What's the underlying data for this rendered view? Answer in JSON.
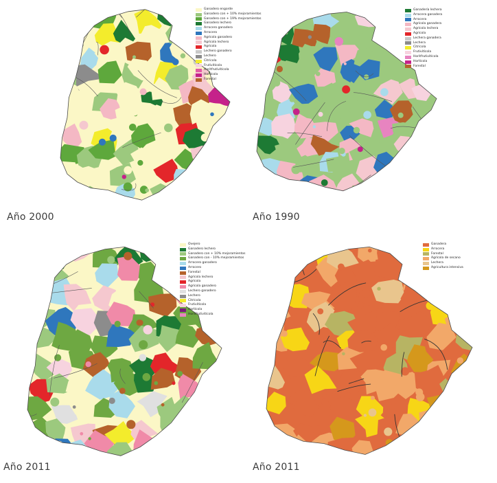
{
  "panels": [
    {
      "caption": "Año 2000",
      "legend": [
        {
          "label": "Ganadero engorde",
          "color": "#fbf7c6"
        },
        {
          "label": "Ganadero con + 10% mejoramientos",
          "color": "#9cc97e"
        },
        {
          "label": "Ganadero con + 19% mejoramientos",
          "color": "#5ea83c"
        },
        {
          "label": "Ganadero lechero",
          "color": "#1d7a34"
        },
        {
          "label": "Arrocero ganadero",
          "color": "#a9dbeb"
        },
        {
          "label": "Arrocero",
          "color": "#2f77bd"
        },
        {
          "label": "Agrícola ganadero",
          "color": "#f4b8c4"
        },
        {
          "label": "Agrícola lechero",
          "color": "#f5c8cf"
        },
        {
          "label": "Agrícola",
          "color": "#e3262a"
        },
        {
          "label": "Lechero ganadero",
          "color": "#c9c9c9"
        },
        {
          "label": "Lechero",
          "color": "#8c8c8c"
        },
        {
          "label": "Citrícola",
          "color": "#f3ec2c"
        },
        {
          "label": "Frutivitícola",
          "color": "#f7d3df"
        },
        {
          "label": "Horitfrutivitícola",
          "color": "#e35aa4"
        },
        {
          "label": "Hortícola",
          "color": "#c5228a"
        },
        {
          "label": "Forestal",
          "color": "#b5622b"
        }
      ]
    },
    {
      "caption": "Año 1990",
      "legend": [
        {
          "label": "Ganadería lechera",
          "color": "#1d7a34"
        },
        {
          "label": "Arrocera ganadera",
          "color": "#a9dbeb"
        },
        {
          "label": "Arrocera",
          "color": "#2f77bd"
        },
        {
          "label": "Agrícola ganadera",
          "color": "#f4b8c4"
        },
        {
          "label": "Agrícola lechera",
          "color": "#f5c8cf"
        },
        {
          "label": "Agrícola",
          "color": "#e3262a"
        },
        {
          "label": "Lechera ganadera",
          "color": "#c9c9c9"
        },
        {
          "label": "Lechera",
          "color": "#8c8c8c"
        },
        {
          "label": "Citrícola",
          "color": "#f3ec2c"
        },
        {
          "label": "Frutivitícola",
          "color": "#f7d3df"
        },
        {
          "label": "Horitfrutivitícola",
          "color": "#e784c0"
        },
        {
          "label": "Hortícola",
          "color": "#c5228a"
        },
        {
          "label": "Forestal",
          "color": "#b5622b"
        }
      ]
    },
    {
      "caption": "Año 2011",
      "legend": [
        {
          "label": "Ovejero",
          "color": "#fbf7c6"
        },
        {
          "label": "Ganadero lechero",
          "color": "#1d7a34"
        },
        {
          "label": "Ganadero con + 10% mejoramientos",
          "color": "#9cc97e"
        },
        {
          "label": "Ganadero con - 10% mejoramientos",
          "color": "#6ea842"
        },
        {
          "label": "Arrocero ganadero",
          "color": "#a9dbeb"
        },
        {
          "label": "Arrocero",
          "color": "#2f77bd"
        },
        {
          "label": "Forestal",
          "color": "#b5622b"
        },
        {
          "label": "Agrícola lechero",
          "color": "#f5c8cf"
        },
        {
          "label": "Agrícola",
          "color": "#e3262a"
        },
        {
          "label": "Agrícola ganadero",
          "color": "#f08aa8"
        },
        {
          "label": "Lechero ganadero",
          "color": "#e0e0e0"
        },
        {
          "label": "Lechero",
          "color": "#8c8c8c"
        },
        {
          "label": "Citrícola",
          "color": "#f3ec2c"
        },
        {
          "label": "Frutivitícola",
          "color": "#f7d3df"
        },
        {
          "label": "Hortícola",
          "color": "#7a1b7a"
        },
        {
          "label": "Horitfrutivitícola",
          "color": "#e784c0"
        }
      ]
    },
    {
      "caption": "Año 2011",
      "legend": [
        {
          "label": "Ganadera",
          "color": "#e06b3e"
        },
        {
          "label": "Arrocera",
          "color": "#f7d616"
        },
        {
          "label": "Forestal",
          "color": "#b7b463"
        },
        {
          "label": "Agrícola de secano",
          "color": "#f2a869"
        },
        {
          "label": "Lechera",
          "color": "#e9c58d"
        },
        {
          "label": "Agricultura intensiva",
          "color": "#d5981c"
        }
      ]
    }
  ]
}
